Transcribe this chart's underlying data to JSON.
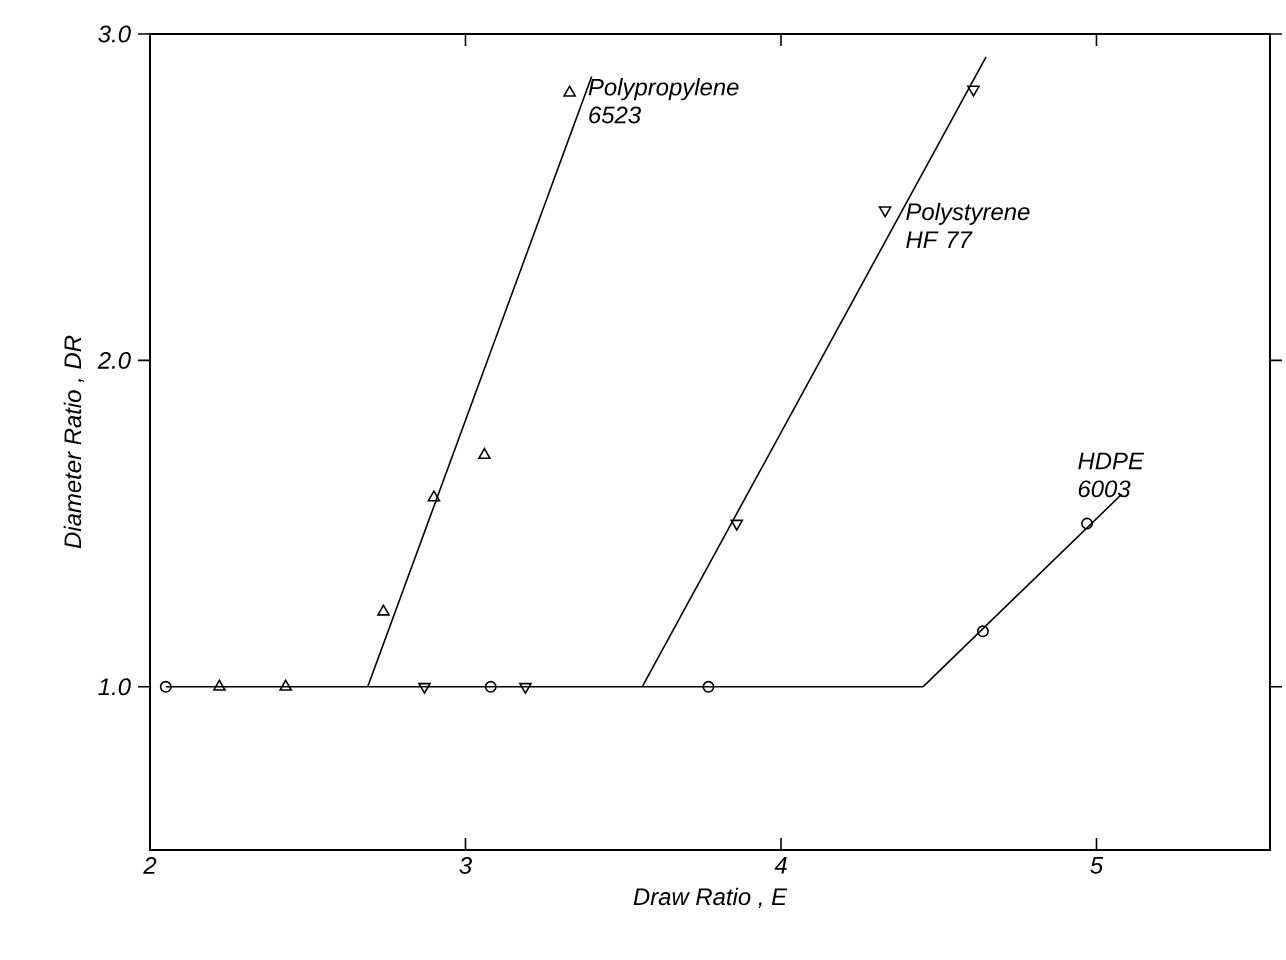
{
  "chart_data": {
    "type": "scatter",
    "xlabel": "Draw  Ratio , E",
    "ylabel": "Diameter  Ratio , DR",
    "xlim": [
      2,
      5.55
    ],
    "ylim": [
      0.5,
      3.0
    ],
    "xticks": [
      2,
      3,
      4,
      5
    ],
    "yticks": [
      {
        "value": 1,
        "label": "1.0"
      },
      {
        "value": 2,
        "label": "2.0"
      },
      {
        "value": 3,
        "label": "3.0"
      }
    ],
    "grid": false,
    "legend": false,
    "series": [
      {
        "name": "Polypropylene 6523",
        "marker": "triangle",
        "color": "#000000",
        "x": [
          2.22,
          2.43,
          2.74,
          2.9,
          3.06,
          3.33
        ],
        "values": [
          1.0,
          1.0,
          1.23,
          1.58,
          1.71,
          2.82
        ]
      },
      {
        "name": "Polystyrene HF 77",
        "marker": "triangle_down",
        "color": "#000000",
        "x": [
          2.87,
          3.19,
          3.86,
          4.33,
          4.61
        ],
        "values": [
          1.0,
          1.0,
          1.5,
          2.46,
          2.83
        ]
      },
      {
        "name": "HDPE 6003",
        "marker": "circle",
        "color": "#000000",
        "x": [
          2.05,
          3.08,
          3.77,
          4.64,
          4.97
        ],
        "values": [
          1.0,
          1.0,
          1.0,
          1.17,
          1.5
        ]
      },
      {
        "type": "line",
        "marker": "none",
        "color": "#000000",
        "x": [
          2.05,
          4.45
        ],
        "values": [
          1.0,
          1.0
        ]
      },
      {
        "type": "line",
        "marker": "none",
        "color": "#000000",
        "x": [
          2.69,
          3.4
        ],
        "values": [
          1.0,
          2.87
        ]
      },
      {
        "type": "line",
        "marker": "none",
        "color": "#000000",
        "x": [
          3.56,
          4.65
        ],
        "values": [
          1.0,
          2.93
        ]
      },
      {
        "type": "line",
        "marker": "none",
        "color": "#000000",
        "x": [
          4.45,
          5.08
        ],
        "values": [
          1.0,
          1.59
        ]
      }
    ]
  }
}
